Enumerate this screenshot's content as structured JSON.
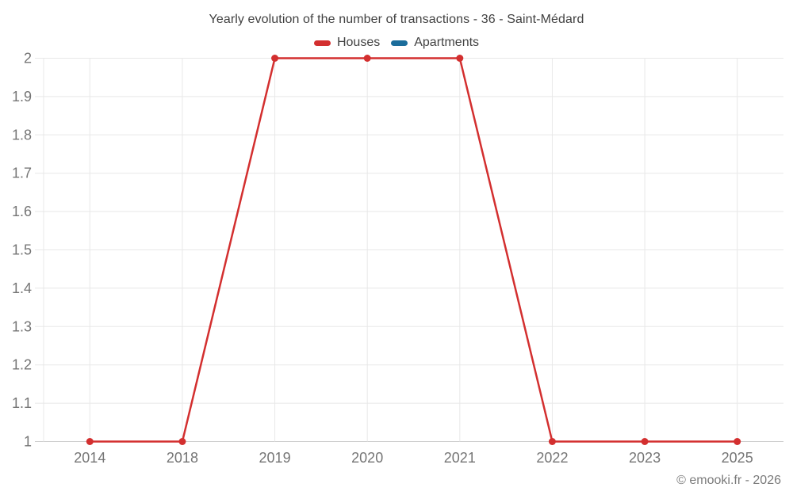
{
  "header": {
    "title": "Yearly evolution of the number of transactions - 36 - Saint-Médard"
  },
  "footer": {
    "copyright": "© emooki.fr - 2026"
  },
  "colors": {
    "background": "#ffffff",
    "grid": "#e8e8e8",
    "axis": "#cdcdcd",
    "tick_label": "#757575",
    "title_text": "#414141",
    "legend_text": "#424242",
    "houses_red": "#d32f2f",
    "apartments_blue": "#1b6d9b"
  },
  "chart_data": {
    "type": "line",
    "title": "Yearly evolution of the number of transactions - 36 - Saint-Médard",
    "xlabel": "",
    "ylabel": "",
    "categories": [
      "2014",
      "2018",
      "2019",
      "2020",
      "2021",
      "2022",
      "2023",
      "2025"
    ],
    "series": [
      {
        "name": "Houses",
        "color": "#d32f2f",
        "values": [
          1,
          1,
          2,
          2,
          2,
          1,
          1,
          1
        ],
        "markers": true
      },
      {
        "name": "Apartments",
        "color": "#1b6d9b",
        "values": [],
        "markers": true
      }
    ],
    "ylim": [
      1,
      2
    ],
    "yticks": [
      1,
      1.1,
      1.2,
      1.3,
      1.4,
      1.5,
      1.6,
      1.7,
      1.8,
      1.9,
      2
    ],
    "ytick_labels": [
      "1",
      "1.1",
      "1.2",
      "1.3",
      "1.4",
      "1.5",
      "1.6",
      "1.7",
      "1.8",
      "1.9",
      "2"
    ],
    "grid": true,
    "legend_position": "top"
  }
}
